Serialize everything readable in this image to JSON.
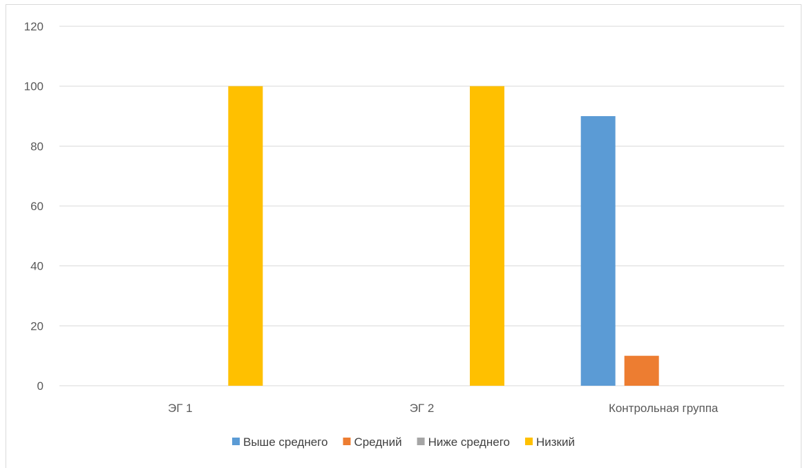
{
  "chart_data": {
    "type": "bar",
    "title": "",
    "xlabel": "",
    "ylabel": "",
    "categories": [
      "ЭГ 1",
      "ЭГ 2",
      "Контрольная группа"
    ],
    "series": [
      {
        "name": "Выше среднего",
        "color": "#5b9bd5",
        "values": [
          0,
          0,
          90
        ]
      },
      {
        "name": "Средний",
        "color": "#ed7d31",
        "values": [
          0,
          0,
          10
        ]
      },
      {
        "name": "Ниже среднего",
        "color": "#a5a5a5",
        "values": [
          0,
          0,
          0
        ]
      },
      {
        "name": "Низкий",
        "color": "#ffc000",
        "values": [
          100,
          100,
          0
        ]
      }
    ],
    "ylim": [
      0,
      120
    ],
    "yticks": [
      0,
      20,
      40,
      60,
      80,
      100,
      120
    ],
    "grid": true,
    "legend_position": "bottom",
    "colors": {
      "grid": "#d9d9d9",
      "tick_text": "#595959",
      "legend_text": "#404040"
    }
  }
}
